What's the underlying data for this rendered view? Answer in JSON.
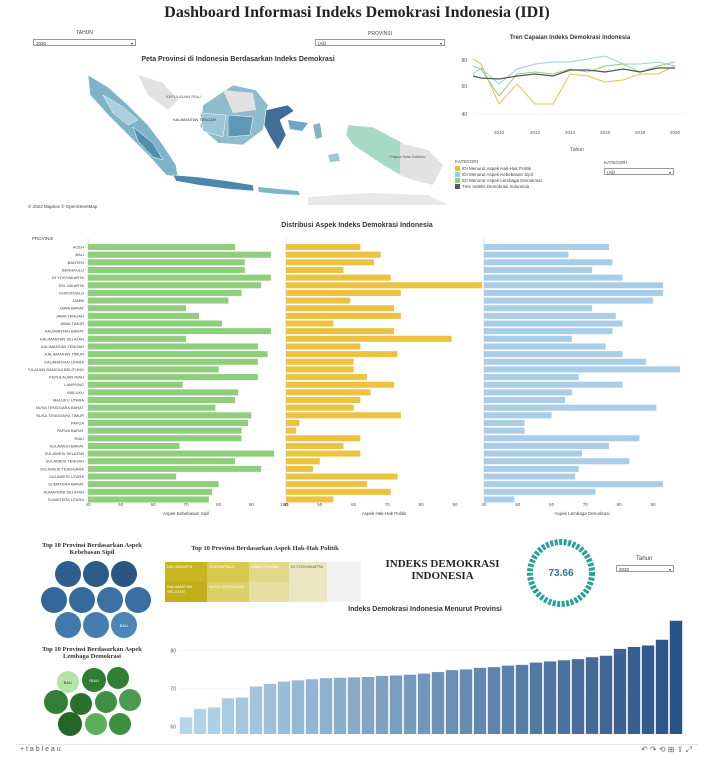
{
  "page_title": "Dashboard Informasi Indeks Demokrasi Indonesia (IDI)",
  "filters": {
    "tahun_label": "TAHUN",
    "tahun_value": "2020",
    "provinsi_label": "PROVINSI",
    "provinsi_value": "(All)"
  },
  "map": {
    "title": "Peta Provinsi di Indonesia Berdasarkan Indeks Demokrasi",
    "credit": "© 2022 Mapbox © OpenStreetMap",
    "labels": [
      "KEPULAUAN RIAU",
      "KALIMANTAN TENGAH",
      "Papua New Guinea"
    ]
  },
  "trend": {
    "title": "Tren Capaian Indeks Demokrasi Indonesia",
    "xlabel": "Tahun",
    "y_ticks": [
      "80",
      "60",
      "40"
    ],
    "x_ticks": [
      "2010",
      "2012",
      "2014",
      "2016",
      "2018",
      "2020"
    ],
    "legend_title": "KATEGORI",
    "legend": [
      {
        "name": "IDI Menurut Aspek Hak-Hak Politik",
        "color": "#e8c14a"
      },
      {
        "name": "IDI Menurut Aspek Kebebasan Sipil",
        "color": "#9ecae1"
      },
      {
        "name": "IDI Menurut Aspek Lembaga Demokrasi",
        "color": "#8fd17a"
      },
      {
        "name": "Tren Indeks Demokrasi Indonesia",
        "color": "#555555"
      }
    ],
    "kategori_label": "KATEGORI",
    "kategori_value": "(All)"
  },
  "distribution": {
    "title": "Distribusi Aspek Indeks Demokrasi Indonesia",
    "provinsi_header": "PROVINSI",
    "provinces": [
      "ACEH",
      "BALI",
      "BANTEN",
      "BENGKULU",
      "DI YOGYAKARTA",
      "DKI JAKARTA",
      "GORONTALO",
      "JAMBI",
      "JAWA BARAT",
      "JAWA TENGAH",
      "JAWA TIMUR",
      "KALIMANTAN BARAT",
      "KALIMANTAN SELATAN",
      "KALIMANTAN TENGAH",
      "KALIMANTAN TIMUR",
      "KALIMANTAN UTARA",
      "KEPULAUAN BANGKA BELITUNG",
      "KEPULAUAN RIAU",
      "LAMPUNG",
      "MALUKU",
      "MALUKU UTARA",
      "NUSA TENGGARA BARAT",
      "NUSA TENGGARA TIMUR",
      "PAPUA",
      "PAPUA BARAT",
      "RIAU",
      "SULAWESI BARAT",
      "SULAWESI SELATAN",
      "SULAWESI TENGAH",
      "SULAWESI TENGGARA",
      "SULAWESI UTARA",
      "SUMATERA BARAT",
      "SUMATERA SELATAN",
      "SUMATERA UTARA"
    ],
    "panels": [
      {
        "axis_label": "Aspek Kebebasan Sipil",
        "color": "#8fce7c",
        "ticks": [
          "40",
          "50",
          "60",
          "70",
          "80",
          "90",
          "100"
        ],
        "min": 40,
        "max": 100,
        "values": [
          85,
          96,
          88,
          88,
          96,
          93,
          87,
          83,
          70,
          74,
          81,
          96,
          70,
          92,
          95,
          92,
          80,
          92,
          69,
          86,
          85,
          79,
          90,
          89,
          87,
          87,
          68,
          97,
          85,
          93,
          67,
          80,
          78,
          77
        ]
      },
      {
        "axis_label": "Aspek Hak-Hak Politik",
        "color": "#ebc340",
        "ticks": [
          "40",
          "50",
          "60",
          "70",
          "80",
          "90"
        ],
        "min": 40,
        "max": 98,
        "values": [
          62,
          68,
          66,
          57,
          71,
          98,
          74,
          59,
          72,
          74,
          54,
          72,
          89,
          62,
          73,
          60,
          60,
          64,
          72,
          65,
          62,
          60,
          74,
          44,
          43,
          62,
          57,
          62,
          50,
          48,
          73,
          64,
          71,
          54
        ]
      },
      {
        "axis_label": "Aspek Lembaga Demokrasi",
        "color": "#a9cde6",
        "ticks": [
          "40",
          "50",
          "60",
          "70",
          "80",
          "90"
        ],
        "min": 40,
        "max": 98,
        "values": [
          77,
          65,
          78,
          72,
          81,
          93,
          93,
          90,
          72,
          79,
          81,
          78,
          66,
          76,
          81,
          88,
          98,
          68,
          81,
          66,
          64,
          91,
          60,
          52,
          52,
          86,
          77,
          69,
          83,
          68,
          67,
          93,
          73,
          49
        ]
      }
    ]
  },
  "top10_sipil": {
    "title": "Top 10 Provinsi Berdasarkan Aspek Kebebasan Sipil",
    "label": "BALI",
    "color": "#2f5f8e"
  },
  "top10_politik": {
    "title": "Top 10 Provinsi Berdasarkan Aspek Hak-Hak Politik",
    "cells": [
      "DKI JAKARTA",
      "GORONTALO",
      "JAWA TENGAH",
      "DI YOGYAKARTA",
      "KALIMANTAN SELATAN",
      "NUSA TENGGARA",
      "",
      "",
      "",
      ""
    ]
  },
  "top10_lembaga": {
    "title": "Top 10 Provinsi Berdasarkan Aspek Lembaga Demokrasi",
    "labels": [
      "BALI",
      "RIAU"
    ]
  },
  "kpi": {
    "title": "INDEKS DEMOKRASI INDONESIA",
    "value": "73.66",
    "tahun_label": "Tahun",
    "tahun_value": "2020"
  },
  "province_chart": {
    "title": "Indeks Demokrasi Indonesia Menurut Provinsi",
    "y_ticks": [
      "80",
      "70",
      "60"
    ],
    "ymin": 58,
    "ymax": 88,
    "values": [
      62.4,
      64.6,
      65,
      67.4,
      67.6,
      70.5,
      71.2,
      71.8,
      72.1,
      72.4,
      72.7,
      72.8,
      72.9,
      73.0,
      73.3,
      73.4,
      73.6,
      73.9,
      74.3,
      74.8,
      75.0,
      75.4,
      75.6,
      76.0,
      76.2,
      76.8,
      77.1,
      77.4,
      77.7,
      78.2,
      78.6,
      80.4,
      80.9,
      81.3,
      82.8,
      87.8
    ]
  },
  "footer": {
    "brand": "+ t a b l e a u"
  }
}
